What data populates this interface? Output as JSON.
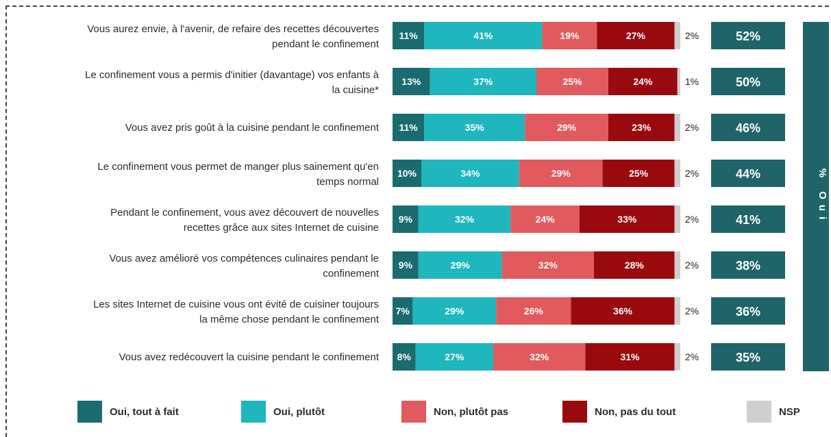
{
  "chart_data": {
    "type": "bar",
    "stacked": true,
    "orientation": "horizontal",
    "categories": [
      [
        "Vous aurez envie, à l'avenir, de refaire des recettes découvertes",
        "pendant le confinement"
      ],
      [
        "Le confinement vous a permis d'initier (davantage) vos enfants à",
        "la cuisine*"
      ],
      [
        "Vous avez pris goût à la cuisine pendant le confinement"
      ],
      [
        "Le confinement vous permet de manger plus sainement qu'en",
        "temps normal"
      ],
      [
        "Pendant le confinement, vous avez découvert de nouvelles",
        "recettes grâce aux sites Internet de cuisine"
      ],
      [
        "Vous avez amélioré vos compétences culinaires pendant le",
        "confinement"
      ],
      [
        "Les sites Internet de cuisine vous ont évité de cuisiner toujours",
        "la même chose pendant le confinement"
      ],
      [
        "Vous avez redécouvert la cuisine pendant le confinement"
      ]
    ],
    "series": [
      {
        "name": "Oui, tout à fait",
        "color": "#1a6b6f",
        "values": [
          11,
          13,
          11,
          10,
          9,
          9,
          7,
          8
        ]
      },
      {
        "name": "Oui, plutôt",
        "color": "#1fb6bd",
        "values": [
          41,
          37,
          35,
          34,
          32,
          29,
          29,
          27
        ]
      },
      {
        "name": "Non, plutôt pas",
        "color": "#e15a5e",
        "values": [
          19,
          25,
          29,
          29,
          24,
          32,
          26,
          32
        ]
      },
      {
        "name": "Non, pas du tout",
        "color": "#990a0f",
        "values": [
          27,
          24,
          23,
          25,
          33,
          28,
          36,
          31
        ]
      },
      {
        "name": "NSP",
        "color": "#cfcfcf",
        "values": [
          2,
          1,
          2,
          2,
          2,
          2,
          2,
          2
        ]
      }
    ],
    "totals": {
      "label": "% Oui",
      "color": "#1f6468",
      "values": [
        52,
        50,
        46,
        44,
        41,
        38,
        36,
        35
      ]
    },
    "unit": "%",
    "xlim": [
      0,
      100
    ],
    "legend_position": "bottom"
  }
}
